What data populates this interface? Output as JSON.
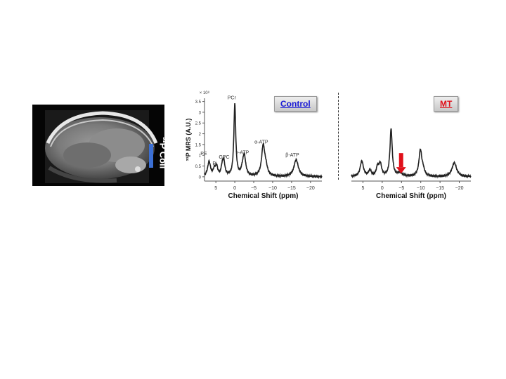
{
  "mri": {
    "coil_label": "³¹P Coil",
    "coil_bar_color": "#3b6fd4"
  },
  "spectra": {
    "control_title": "Control",
    "mt_title": "MT",
    "arrow_color": "#e0101a"
  },
  "chart_data": [
    {
      "type": "line",
      "name": "control",
      "title": "Control",
      "xlabel": "Chemical Shift (ppm)",
      "ylabel": "³¹P MRS (A.U.)",
      "yscale_label": "× 10⁸",
      "xlim": [
        8,
        -23
      ],
      "ylim": [
        -0.2,
        3.65
      ],
      "xticks": [
        5,
        0,
        -5,
        -10,
        -15,
        -20
      ],
      "xtick_labels": [
        "5",
        "0",
        "−5",
        "−10",
        "−15",
        "−20"
      ],
      "yticks": [
        0,
        0.5,
        1,
        1.5,
        2,
        2.5,
        3,
        3.5
      ],
      "ytick_labels": [
        "0",
        "0.5",
        "1",
        "1.5",
        "2",
        "2.5",
        "3",
        "3.5"
      ],
      "peaks": [
        {
          "ppm": 6.8,
          "height": 0.68,
          "width": 0.45,
          "label": "PE"
        },
        {
          "ppm": 5.4,
          "height": 0.3,
          "width": 0.35,
          "label": ""
        },
        {
          "ppm": 4.8,
          "height": 0.42,
          "width": 0.35,
          "label": "Pi"
        },
        {
          "ppm": 3.3,
          "height": 0.42,
          "width": 0.35,
          "label": ""
        },
        {
          "ppm": 2.9,
          "height": 0.6,
          "width": 0.35,
          "label": "GPC"
        },
        {
          "ppm": 0.0,
          "height": 3.35,
          "width": 0.3,
          "label": "PCr"
        },
        {
          "ppm": -2.5,
          "height": 0.95,
          "width": 0.45,
          "label": "γ-ATP"
        },
        {
          "ppm": -2.0,
          "height": 0.2,
          "width": 0.4,
          "label": ""
        },
        {
          "ppm": -7.5,
          "height": 1.4,
          "width": 0.5,
          "label": "α-ATP"
        },
        {
          "ppm": -8.2,
          "height": 0.35,
          "width": 0.5,
          "label": ""
        },
        {
          "ppm": -16.2,
          "height": 0.78,
          "width": 0.7,
          "label": "β-ATP"
        }
      ],
      "peak_label_positions": [
        {
          "label": "PE",
          "ppm": 8.2,
          "y": 1.0
        },
        {
          "label": "Pi",
          "ppm": 5.3,
          "y": 0.55
        },
        {
          "label": "GPC",
          "ppm": 2.8,
          "y": 0.85
        },
        {
          "label": "PCr",
          "ppm": 0.8,
          "y": 3.6
        },
        {
          "label": "γ-ATP",
          "ppm": -2.0,
          "y": 1.05
        },
        {
          "label": "α-ATP",
          "ppm": -7.0,
          "y": 1.55
        },
        {
          "label": "β-ATP",
          "ppm": -15.2,
          "y": 0.95
        }
      ]
    },
    {
      "type": "line",
      "name": "mt",
      "title": "MT",
      "xlabel": "Chemical Shift (ppm)",
      "xlim": [
        8,
        -23
      ],
      "ylim": [
        -0.2,
        3.65
      ],
      "xticks": [
        5,
        0,
        -5,
        -10,
        -15,
        -20
      ],
      "xtick_labels": [
        "5",
        "0",
        "−5",
        "−10",
        "−15",
        "−20"
      ],
      "peaks": [
        {
          "ppm": 5.3,
          "height": 0.72,
          "width": 0.5
        },
        {
          "ppm": 3.2,
          "height": 0.28,
          "width": 0.4
        },
        {
          "ppm": 1.2,
          "height": 0.42,
          "width": 0.4
        },
        {
          "ppm": 0.5,
          "height": 0.55,
          "width": 0.4
        },
        {
          "ppm": -2.3,
          "height": 2.2,
          "width": 0.35
        },
        {
          "ppm": -4.6,
          "height": 0.15,
          "width": 0.8
        },
        {
          "ppm": -9.9,
          "height": 1.2,
          "width": 0.45
        },
        {
          "ppm": -10.6,
          "height": 0.25,
          "width": 0.45
        },
        {
          "ppm": -18.7,
          "height": 0.65,
          "width": 0.7
        }
      ],
      "arrow_ppm": -4.9
    }
  ]
}
